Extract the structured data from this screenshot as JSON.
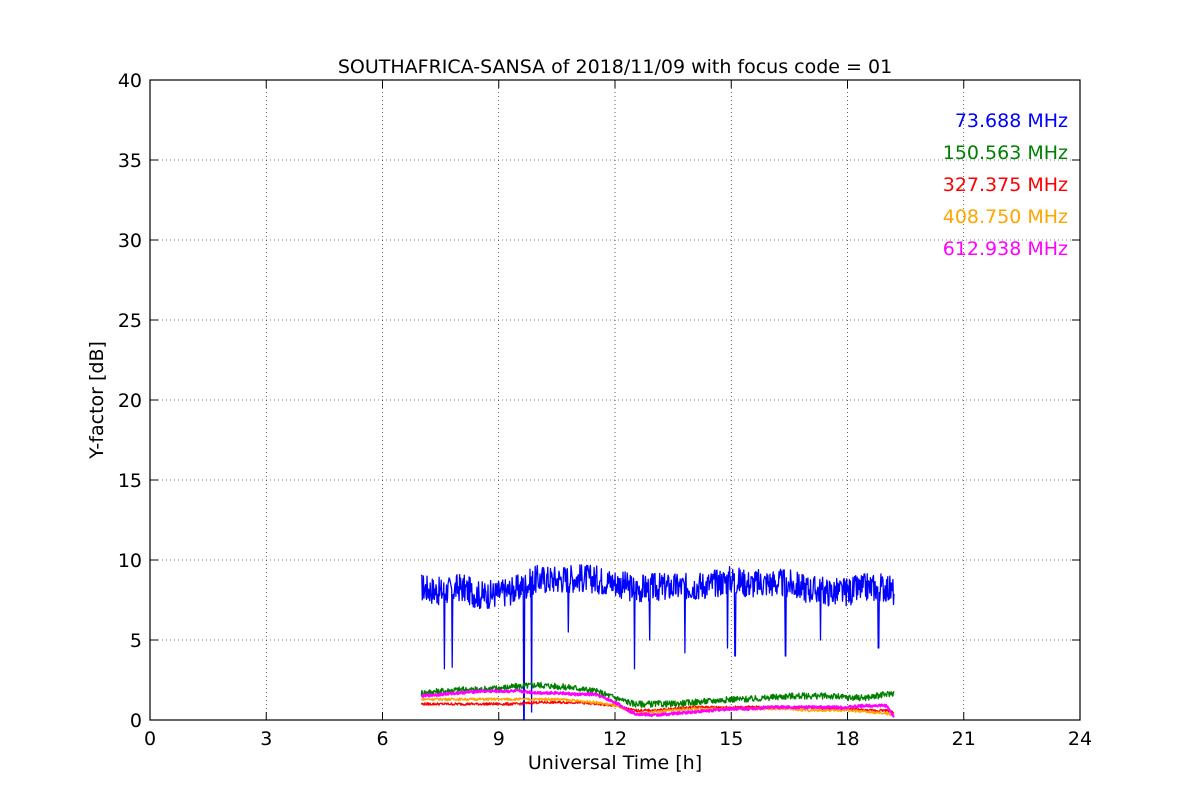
{
  "chart_data": {
    "type": "line",
    "title": "SOUTHAFRICA-SANSA of 2018/11/09 with focus code = 01",
    "xlabel": "Universal Time [h]",
    "ylabel": "Y-factor [dB]",
    "xlim": [
      0,
      24
    ],
    "ylim": [
      0,
      40
    ],
    "xticks": [
      0,
      3,
      6,
      9,
      12,
      15,
      18,
      21,
      24
    ],
    "yticks": [
      0,
      5,
      10,
      15,
      20,
      25,
      30,
      35,
      40
    ],
    "xtick_labels": [
      "0",
      "3",
      "6",
      "9",
      "12",
      "15",
      "18",
      "21",
      "24"
    ],
    "ytick_labels": [
      "0",
      "5",
      "10",
      "15",
      "20",
      "25",
      "30",
      "35",
      "40"
    ],
    "grid": true,
    "legend_placement": "top-right",
    "series": [
      {
        "name": "73.688 MHz",
        "color": "#0000ff",
        "x": [
          7.0,
          7.5,
          8.0,
          8.5,
          9.0,
          9.5,
          10.0,
          10.5,
          11.0,
          11.5,
          12.0,
          12.5,
          13.0,
          13.5,
          14.0,
          14.5,
          15.0,
          15.5,
          16.0,
          16.5,
          17.0,
          17.5,
          18.0,
          18.5,
          19.0,
          19.2
        ],
        "y": [
          8.3,
          8.0,
          8.3,
          7.8,
          7.9,
          8.2,
          8.8,
          8.8,
          8.9,
          8.8,
          8.6,
          8.2,
          8.3,
          8.3,
          8.4,
          8.5,
          8.8,
          8.5,
          8.6,
          8.5,
          8.2,
          8.0,
          8.0,
          8.3,
          8.3,
          8.0
        ],
        "spikes": [
          [
            7.6,
            3.2
          ],
          [
            7.8,
            3.3
          ],
          [
            9.65,
            0.0
          ],
          [
            9.85,
            0.5
          ],
          [
            10.8,
            5.5
          ],
          [
            12.5,
            3.2
          ],
          [
            12.9,
            5.0
          ],
          [
            13.8,
            4.2
          ],
          [
            14.9,
            4.5
          ],
          [
            15.1,
            4.0
          ],
          [
            16.4,
            4.0
          ],
          [
            17.3,
            5.0
          ],
          [
            18.8,
            4.5
          ]
        ]
      },
      {
        "name": "150.563 MHz",
        "color": "#008000",
        "x": [
          7.0,
          7.5,
          8.0,
          8.5,
          9.0,
          9.5,
          10.0,
          10.5,
          11.0,
          11.5,
          12.0,
          12.5,
          13.0,
          13.5,
          14.0,
          14.5,
          15.0,
          15.5,
          16.0,
          16.5,
          17.0,
          17.5,
          18.0,
          18.5,
          19.0,
          19.2
        ],
        "y": [
          1.7,
          1.8,
          1.9,
          1.9,
          2.0,
          2.1,
          2.2,
          2.1,
          2.0,
          1.8,
          1.4,
          1.0,
          1.0,
          1.0,
          1.1,
          1.2,
          1.3,
          1.3,
          1.4,
          1.5,
          1.5,
          1.5,
          1.4,
          1.4,
          1.6,
          1.7
        ]
      },
      {
        "name": "327.375 MHz",
        "color": "#ff0000",
        "x": [
          7.0,
          7.5,
          8.0,
          8.5,
          9.0,
          9.5,
          10.0,
          10.5,
          11.0,
          11.5,
          12.0,
          12.5,
          13.0,
          13.5,
          14.0,
          14.5,
          15.0,
          15.5,
          16.0,
          16.5,
          17.0,
          17.5,
          18.0,
          18.5,
          19.0,
          19.2
        ],
        "y": [
          1.0,
          1.0,
          1.0,
          1.0,
          1.0,
          1.0,
          1.1,
          1.1,
          1.1,
          1.0,
          0.9,
          0.6,
          0.6,
          0.7,
          0.8,
          0.8,
          0.8,
          0.8,
          0.8,
          0.8,
          0.8,
          0.7,
          0.7,
          0.6,
          0.6,
          0.5
        ]
      },
      {
        "name": "408.750 MHz",
        "color": "#ffa500",
        "x": [
          7.0,
          7.5,
          8.0,
          8.5,
          9.0,
          9.5,
          10.0,
          10.5,
          11.0,
          11.5,
          12.0,
          12.5,
          13.0,
          13.5,
          14.0,
          14.5,
          15.0,
          15.5,
          16.0,
          16.5,
          17.0,
          17.5,
          18.0,
          18.5,
          19.0,
          19.2
        ],
        "y": [
          1.3,
          1.3,
          1.3,
          1.3,
          1.3,
          1.3,
          1.3,
          1.3,
          1.2,
          1.1,
          0.9,
          0.4,
          0.5,
          0.6,
          0.7,
          0.7,
          0.7,
          0.7,
          0.7,
          0.7,
          0.6,
          0.6,
          0.6,
          0.5,
          0.4,
          0.3
        ]
      },
      {
        "name": "612.938 MHz",
        "color": "#ff00ff",
        "x": [
          7.0,
          7.5,
          8.0,
          8.5,
          9.0,
          9.5,
          10.0,
          10.5,
          11.0,
          11.5,
          12.0,
          12.5,
          13.0,
          13.5,
          14.0,
          14.5,
          15.0,
          15.5,
          16.0,
          16.5,
          17.0,
          17.5,
          18.0,
          18.5,
          19.0,
          19.2
        ],
        "y": [
          1.5,
          1.6,
          1.7,
          1.8,
          1.8,
          1.8,
          1.7,
          1.7,
          1.6,
          1.6,
          1.1,
          0.4,
          0.3,
          0.4,
          0.5,
          0.6,
          0.7,
          0.7,
          0.8,
          0.8,
          0.8,
          0.8,
          0.8,
          0.9,
          0.9,
          0.2
        ]
      }
    ]
  }
}
